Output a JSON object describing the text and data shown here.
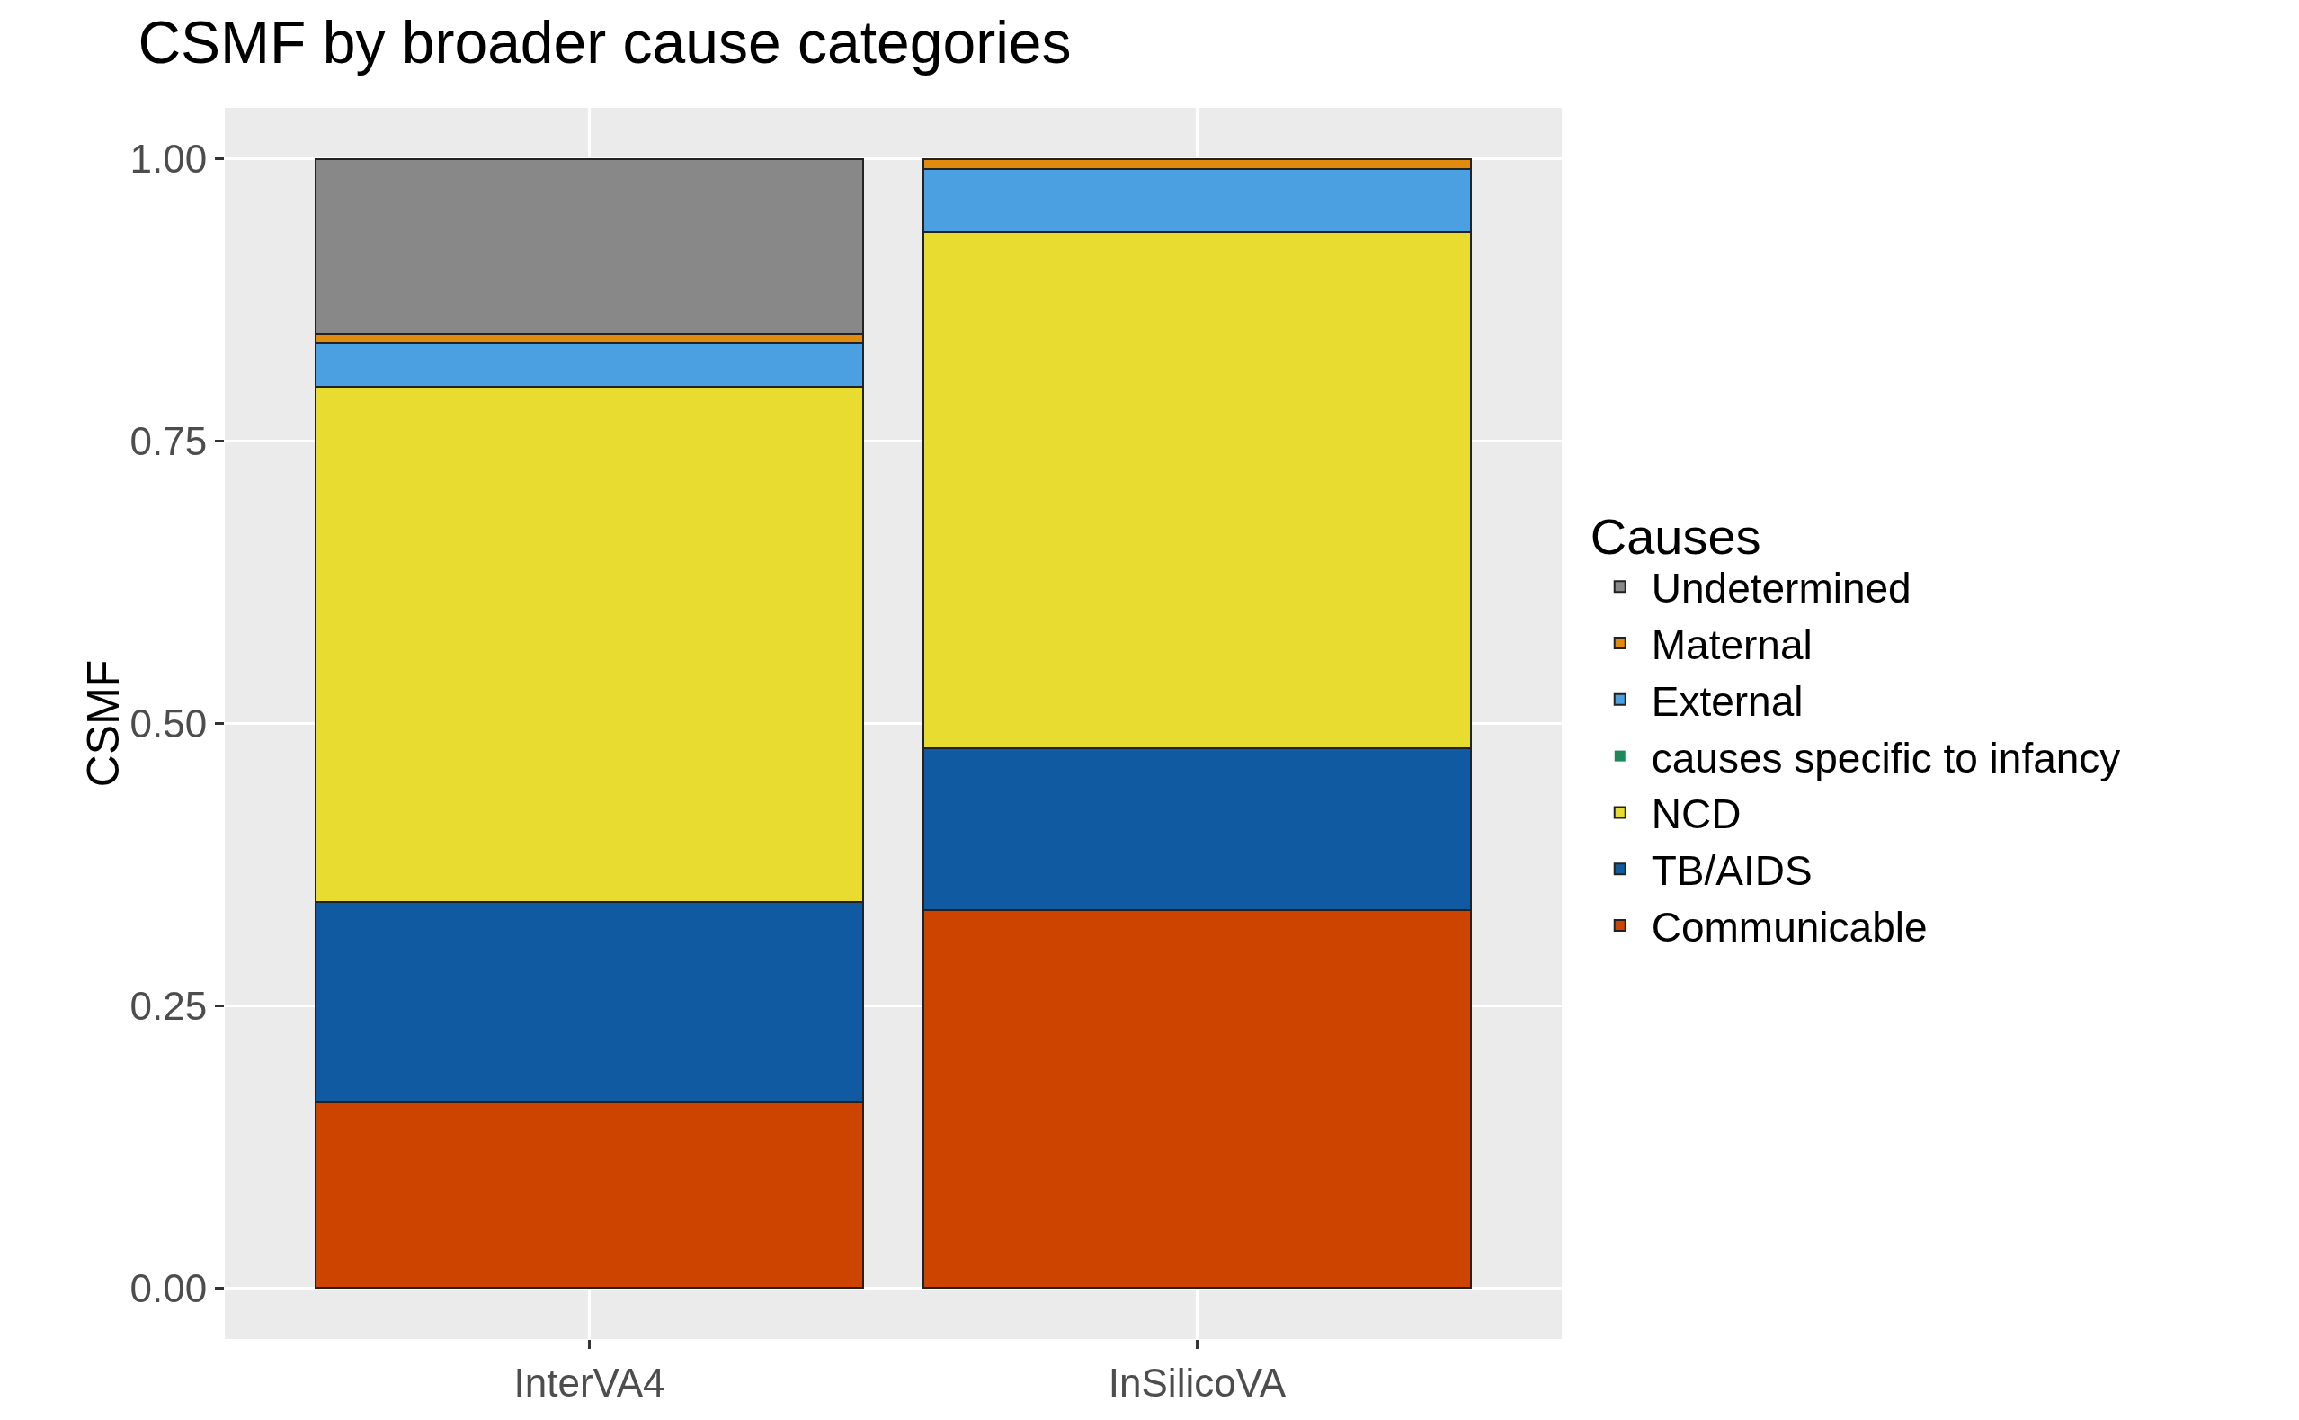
{
  "chart_data": {
    "type": "bar",
    "title": "CSMF by broader cause categories",
    "ylabel": "CSMF",
    "legend_title": "Causes",
    "categories": [
      "InterVA4",
      "InSilicoVA"
    ],
    "stacked": true,
    "grid": true,
    "legend": "right",
    "ylim": [
      -0.045,
      1.045
    ],
    "yticks": [
      {
        "value": 0,
        "label": "0.00"
      },
      {
        "value": 0.25,
        "label": "0.25"
      },
      {
        "value": 0.5,
        "label": "0.50"
      },
      {
        "value": 0.75,
        "label": "0.75"
      },
      {
        "value": 1,
        "label": "1.00"
      }
    ],
    "series": [
      {
        "name": "Communicable",
        "color": "#cc4400",
        "values": [
          0.165,
          0.335
        ]
      },
      {
        "name": "TB/AIDS",
        "color": "#0f5aa0",
        "values": [
          0.177,
          0.143
        ]
      },
      {
        "name": "NCD",
        "color": "#e8dc30",
        "values": [
          0.456,
          0.457
        ]
      },
      {
        "name": "causes specific to infancy",
        "color": "#1a8a5a",
        "values": [
          0,
          0
        ]
      },
      {
        "name": "External",
        "color": "#4aa0e0",
        "values": [
          0.039,
          0.056
        ]
      },
      {
        "name": "Maternal",
        "color": "#e08a10",
        "values": [
          0.008,
          0.009
        ]
      },
      {
        "name": "Undetermined",
        "color": "#888888",
        "values": [
          0.155,
          0
        ]
      }
    ]
  }
}
